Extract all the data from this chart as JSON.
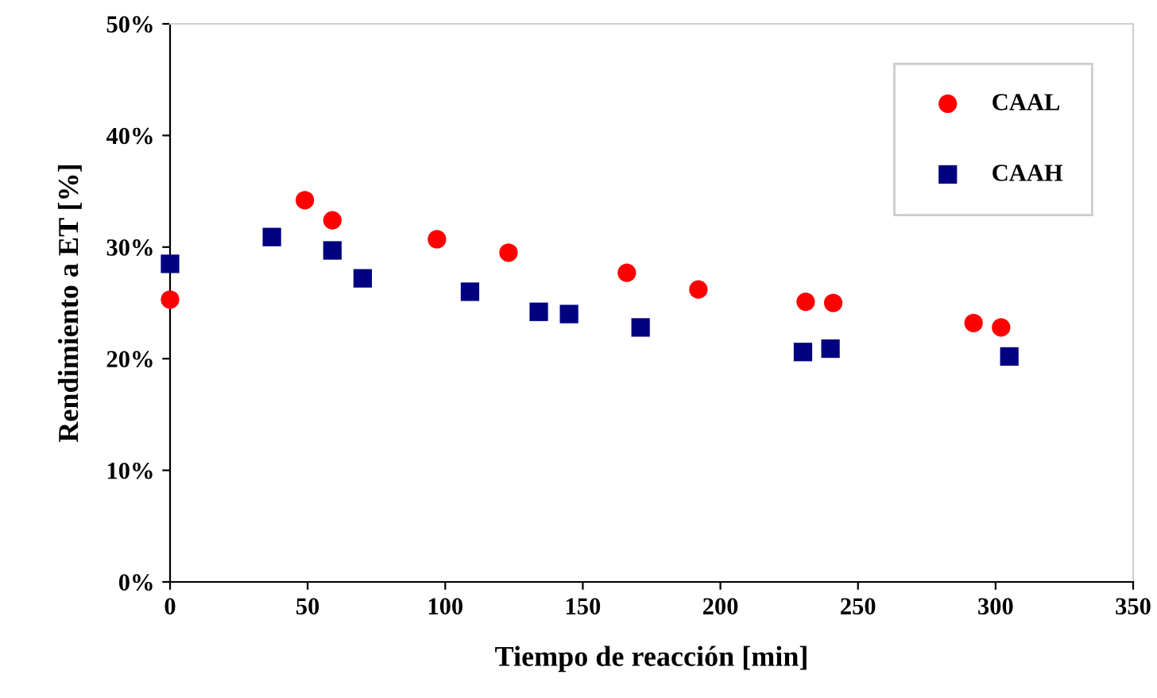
{
  "chart_data": {
    "type": "scatter",
    "xlabel": "Tiempo de reacción [min]",
    "ylabel": "Rendimiento a ET [%]",
    "xlim": [
      0,
      350
    ],
    "xticks": [
      0,
      50,
      100,
      150,
      200,
      250,
      300,
      350
    ],
    "ylim": [
      0,
      50
    ],
    "yticks": [
      {
        "value": 0,
        "label": "0%"
      },
      {
        "value": 10,
        "label": "10%"
      },
      {
        "value": 20,
        "label": "20%"
      },
      {
        "value": 30,
        "label": "30%"
      },
      {
        "value": 40,
        "label": "40%"
      },
      {
        "value": 50,
        "label": "50%"
      }
    ],
    "legend": "top right",
    "grid": false,
    "series": [
      {
        "name": "CAAL",
        "color": "#ff0000",
        "marker": "circle",
        "x": [
          0,
          49,
          59,
          97,
          123,
          166,
          192,
          231,
          241,
          292,
          302
        ],
        "values": [
          25.3,
          34.2,
          32.4,
          30.7,
          29.5,
          27.7,
          26.2,
          25.1,
          25.0,
          23.2,
          22.8
        ]
      },
      {
        "name": "CAAH",
        "color": "#000080",
        "marker": "square",
        "x": [
          0,
          37,
          59,
          70,
          109,
          134,
          145,
          171,
          230,
          240,
          305
        ],
        "values": [
          28.5,
          30.9,
          29.7,
          27.2,
          26.0,
          24.2,
          24.0,
          22.8,
          20.6,
          20.9,
          20.2
        ]
      }
    ]
  }
}
